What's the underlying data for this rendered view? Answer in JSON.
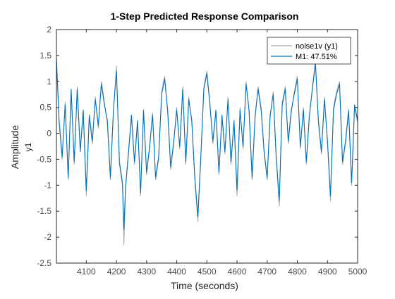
{
  "chart_data": {
    "type": "line",
    "title": "1-Step Predicted Response Comparison",
    "xlabel": "Time (seconds)",
    "ylabel": "Amplitude",
    "channel_label": "y1",
    "xlim": [
      4001,
      5000
    ],
    "ylim": [
      -2.5,
      2
    ],
    "x_ticks": [
      4100,
      4200,
      4300,
      4400,
      4500,
      4600,
      4700,
      4800,
      4900,
      5000
    ],
    "y_ticks": [
      -2.5,
      -2,
      -1.5,
      -1,
      -0.5,
      0,
      0.5,
      1,
      1.5,
      2
    ],
    "grid": false,
    "legend_position": "top-right",
    "colors": {
      "measured": "#a6a6a6",
      "predicted": "#0072bd",
      "axes": "#262626",
      "ticks": "#4d4d4d"
    },
    "series": [
      {
        "name": "noise1v (y1)",
        "role": "measured",
        "x": [
          4001,
          4010,
          4020,
          4030,
          4040,
          4050,
          4060,
          4070,
          4080,
          4090,
          4100,
          4110,
          4120,
          4130,
          4140,
          4150,
          4160,
          4170,
          4180,
          4190,
          4200,
          4210,
          4220,
          4225,
          4230,
          4240,
          4250,
          4260,
          4270,
          4280,
          4290,
          4300,
          4310,
          4320,
          4330,
          4340,
          4350,
          4360,
          4370,
          4380,
          4390,
          4400,
          4410,
          4420,
          4430,
          4440,
          4450,
          4460,
          4470,
          4480,
          4490,
          4500,
          4510,
          4520,
          4530,
          4540,
          4550,
          4560,
          4570,
          4580,
          4590,
          4600,
          4610,
          4620,
          4630,
          4640,
          4650,
          4660,
          4670,
          4680,
          4690,
          4700,
          4710,
          4720,
          4730,
          4740,
          4750,
          4760,
          4770,
          4780,
          4790,
          4800,
          4810,
          4820,
          4830,
          4840,
          4850,
          4860,
          4870,
          4880,
          4890,
          4900,
          4910,
          4920,
          4930,
          4940,
          4950,
          4960,
          4970,
          4980,
          4990,
          5000
        ],
        "values": [
          1.4,
          0.2,
          -0.5,
          0.6,
          -0.9,
          0.8,
          -0.6,
          0.9,
          -0.3,
          0.4,
          -1.2,
          0.3,
          -0.2,
          0.7,
          0.1,
          1.0,
          0.6,
          0.2,
          -0.9,
          0.4,
          1.3,
          -0.6,
          -1.0,
          -2.15,
          -1.1,
          -0.4,
          0.3,
          -0.6,
          0.2,
          -1.2,
          0.4,
          -0.8,
          -0.3,
          0.4,
          -0.9,
          -0.5,
          0.8,
          1.1,
          0.4,
          -0.7,
          -0.2,
          0.5,
          -0.3,
          0.9,
          -0.6,
          0.7,
          0.2,
          -0.9,
          -1.7,
          -0.5,
          0.9,
          1.2,
          0.6,
          -0.2,
          0.4,
          -0.8,
          0.3,
          -0.4,
          0.7,
          -0.6,
          0.2,
          -1.2,
          0.5,
          -0.3,
          1.0,
          0.4,
          -0.9,
          0.3,
          0.9,
          0.5,
          -0.4,
          -0.9,
          0.3,
          0.8,
          -0.5,
          -1.4,
          0.6,
          0.9,
          -0.2,
          0.4,
          0.8,
          1.1,
          -0.3,
          0.5,
          -0.6,
          0.3,
          0.9,
          1.4,
          0.2,
          -0.4,
          0.7,
          -0.2,
          -1.3,
          0.5,
          0.8,
          1.0,
          -0.6,
          -0.2,
          0.4,
          -1.0,
          0.5,
          0.2
        ]
      },
      {
        "name": "M1: 47.51%",
        "role": "predicted",
        "x": [
          4001,
          4010,
          4020,
          4030,
          4040,
          4050,
          4060,
          4070,
          4080,
          4090,
          4100,
          4110,
          4120,
          4130,
          4140,
          4150,
          4160,
          4170,
          4180,
          4190,
          4200,
          4210,
          4220,
          4225,
          4230,
          4240,
          4250,
          4260,
          4270,
          4280,
          4290,
          4300,
          4310,
          4320,
          4330,
          4340,
          4350,
          4360,
          4370,
          4380,
          4390,
          4400,
          4410,
          4420,
          4430,
          4440,
          4450,
          4460,
          4470,
          4480,
          4490,
          4500,
          4510,
          4520,
          4530,
          4540,
          4550,
          4560,
          4570,
          4580,
          4590,
          4600,
          4610,
          4620,
          4630,
          4640,
          4650,
          4660,
          4670,
          4680,
          4690,
          4700,
          4710,
          4720,
          4730,
          4740,
          4750,
          4760,
          4770,
          4780,
          4790,
          4800,
          4810,
          4820,
          4830,
          4840,
          4850,
          4860,
          4870,
          4880,
          4890,
          4900,
          4910,
          4920,
          4930,
          4940,
          4950,
          4960,
          4970,
          4980,
          4990,
          5000
        ],
        "values": [
          1.45,
          0.25,
          -0.45,
          0.55,
          -0.85,
          0.85,
          -0.55,
          0.85,
          -0.35,
          0.45,
          -1.1,
          0.35,
          -0.15,
          0.65,
          0.15,
          0.95,
          0.55,
          0.25,
          -0.85,
          0.45,
          1.2,
          -0.55,
          -0.95,
          -1.85,
          -1.05,
          -0.35,
          0.35,
          -0.55,
          0.25,
          -1.15,
          0.45,
          -0.75,
          -0.25,
          0.35,
          -0.85,
          -0.45,
          0.75,
          1.05,
          0.45,
          -0.65,
          -0.15,
          0.45,
          -0.25,
          0.85,
          -0.55,
          0.65,
          0.25,
          -0.85,
          -1.6,
          -0.45,
          0.85,
          1.15,
          0.55,
          -0.15,
          0.45,
          -0.75,
          0.35,
          -0.35,
          0.65,
          -0.55,
          0.25,
          -1.1,
          0.45,
          -0.25,
          0.95,
          0.45,
          -0.85,
          0.35,
          0.85,
          0.45,
          -0.35,
          -0.85,
          0.35,
          0.75,
          -0.45,
          -1.3,
          0.55,
          0.85,
          -0.15,
          0.45,
          0.75,
          1.05,
          -0.25,
          0.45,
          -0.55,
          0.35,
          0.85,
          1.35,
          0.25,
          -0.35,
          0.65,
          -0.15,
          -1.2,
          0.45,
          0.75,
          0.95,
          -0.55,
          -0.15,
          0.45,
          -0.95,
          0.55,
          0.25
        ]
      }
    ]
  }
}
